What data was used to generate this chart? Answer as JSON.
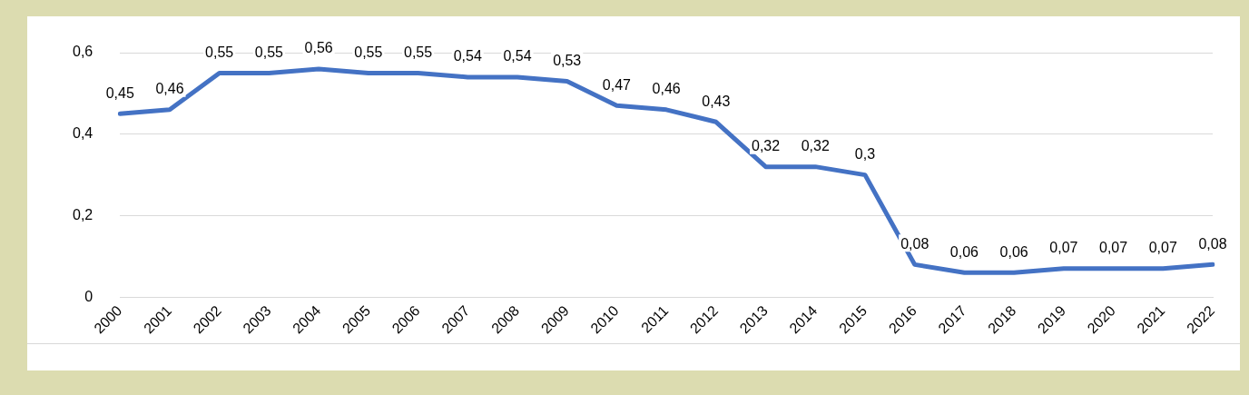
{
  "chart_data": {
    "type": "line",
    "categories": [
      "2000",
      "2001",
      "2002",
      "2003",
      "2004",
      "2005",
      "2006",
      "2007",
      "2008",
      "2009",
      "2010",
      "2011",
      "2012",
      "2013",
      "2014",
      "2015",
      "2016",
      "2017",
      "2018",
      "2019",
      "2020",
      "2021",
      "2022"
    ],
    "series": [
      {
        "color": "#4472c4",
        "values": [
          0.45,
          0.46,
          0.55,
          0.55,
          0.56,
          0.55,
          0.55,
          0.54,
          0.54,
          0.53,
          0.47,
          0.46,
          0.43,
          0.32,
          0.32,
          0.3,
          0.08,
          0.06,
          0.06,
          0.07,
          0.07,
          0.07,
          0.08
        ],
        "value_labels": [
          "0,45",
          "0,46",
          "0,55",
          "0,55",
          "0,56",
          "0,55",
          "0,55",
          "0,54",
          "0,54",
          "0,53",
          "0,47",
          "0,46",
          "0,43",
          "0,32",
          "0,32",
          "0,3",
          "0,08",
          "0,06",
          "0,06",
          "0,07",
          "0,07",
          "0,07",
          "0,08"
        ]
      }
    ],
    "ylim": [
      0,
      0.6
    ],
    "yticks": [
      {
        "value": 0,
        "label": "0"
      },
      {
        "value": 0.2,
        "label": "0,2"
      },
      {
        "value": 0.4,
        "label": "0,4"
      },
      {
        "value": 0.6,
        "label": "0,6"
      }
    ],
    "grid": "y",
    "legend": false,
    "marker": "none",
    "line_style": "solid"
  }
}
